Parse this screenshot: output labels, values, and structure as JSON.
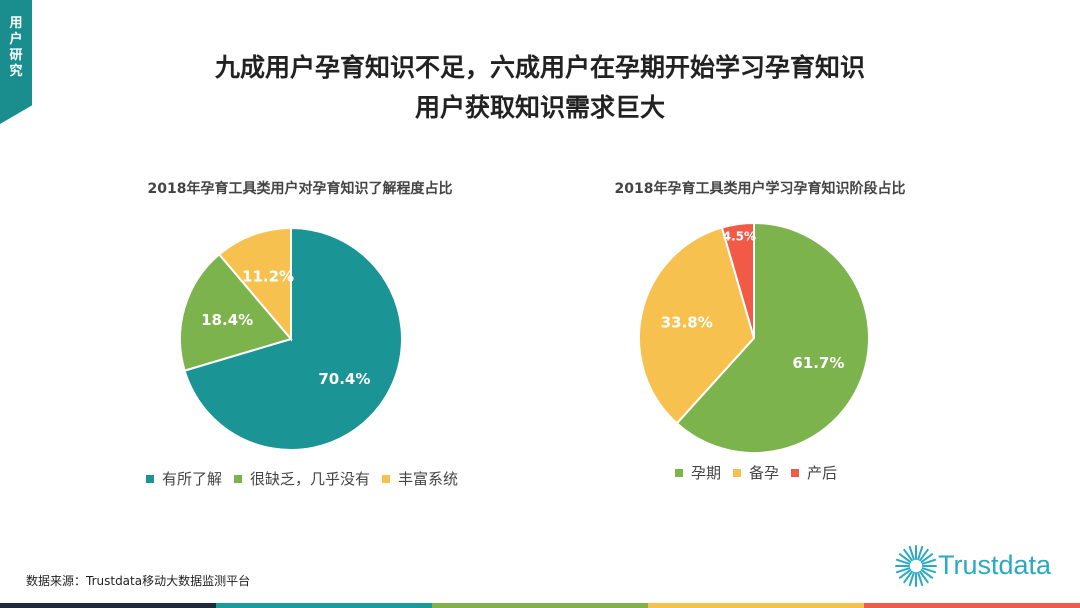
{
  "corner_tag": "用户研究",
  "title_line1": "九成用户孕育知识不足，六成用户在孕期开始学习孕育知识",
  "title_line2": "用户获取知识需求巨大",
  "source": "数据来源：Trustdata移动大数据监测平台",
  "logo_text": "Trustdata",
  "bottom_bar_colors": [
    "#1c2a3a",
    "#1a9a9a",
    "#7fb24a",
    "#f5c24f",
    "#f05a4a"
  ],
  "chart_data": [
    {
      "type": "pie",
      "title": "2018年孕育工具类用户对孕育知识了解程度占比",
      "legend_position": "bottom",
      "slices": [
        {
          "label": "有所了解",
          "value": 70.4,
          "display": "70.4%",
          "color": "#1a9494"
        },
        {
          "label": "很缺乏，几乎没有",
          "value": 18.4,
          "display": "18.4%",
          "color": "#7db34c"
        },
        {
          "label": "丰富系统",
          "value": 11.2,
          "display": "11.2%",
          "color": "#f7c14f"
        }
      ]
    },
    {
      "type": "pie",
      "title": "2018年孕育工具类用户学习孕育知识阶段占比",
      "legend_position": "bottom",
      "slices": [
        {
          "label": "孕期",
          "value": 61.7,
          "display": "61.7%",
          "color": "#7db34c"
        },
        {
          "label": "备孕",
          "value": 33.8,
          "display": "33.8%",
          "color": "#f7c14f"
        },
        {
          "label": "产后",
          "value": 4.5,
          "display": "4.5%",
          "color": "#f15a47"
        }
      ]
    }
  ]
}
